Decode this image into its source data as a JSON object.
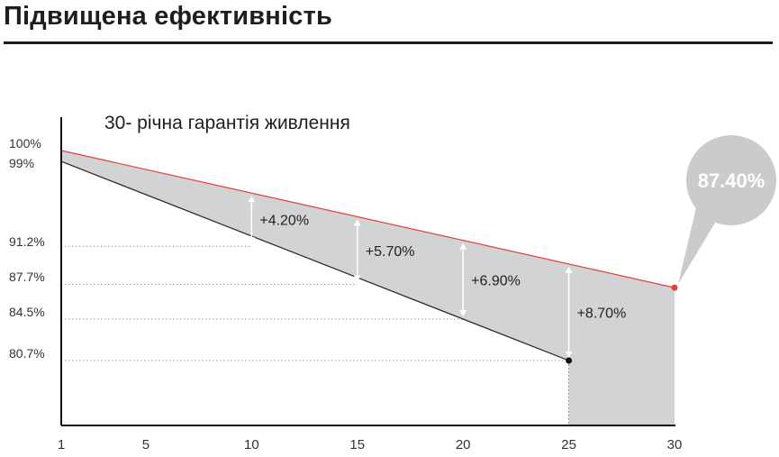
{
  "header": {
    "title": "Підвищена ефективність"
  },
  "chart_data": {
    "type": "area",
    "title": "30- річна гарантія живлення",
    "xlabel": "",
    "ylabel": "",
    "xlim": [
      1,
      30
    ],
    "ylim": [
      75,
      100
    ],
    "x_ticks": [
      "1",
      "5",
      "10",
      "15",
      "20",
      "25",
      "30"
    ],
    "y_ticks": [
      "100%",
      "99%",
      "91.2%",
      "87.7%",
      "84.5%",
      "80.7%"
    ],
    "series": [
      {
        "x": [
          1,
          30
        ],
        "values": [
          100,
          87.4
        ]
      },
      {
        "x": [
          1,
          10,
          15,
          20,
          25
        ],
        "values": [
          99,
          91.2,
          87.7,
          84.5,
          80.7
        ]
      }
    ],
    "gains": [
      {
        "x": 10,
        "label": "+4.20%"
      },
      {
        "x": 15,
        "label": "+5.70%"
      },
      {
        "x": 20,
        "label": "+6.90%"
      },
      {
        "x": 25,
        "label": "+8.70%"
      }
    ],
    "callout": {
      "label": "87.40%",
      "x": 30,
      "value": 87.4
    },
    "colors": {
      "upper_line": "#e04040",
      "lower_line": "#222222",
      "fill": "#d2d3d5",
      "callout": "#cbcbcb"
    }
  }
}
